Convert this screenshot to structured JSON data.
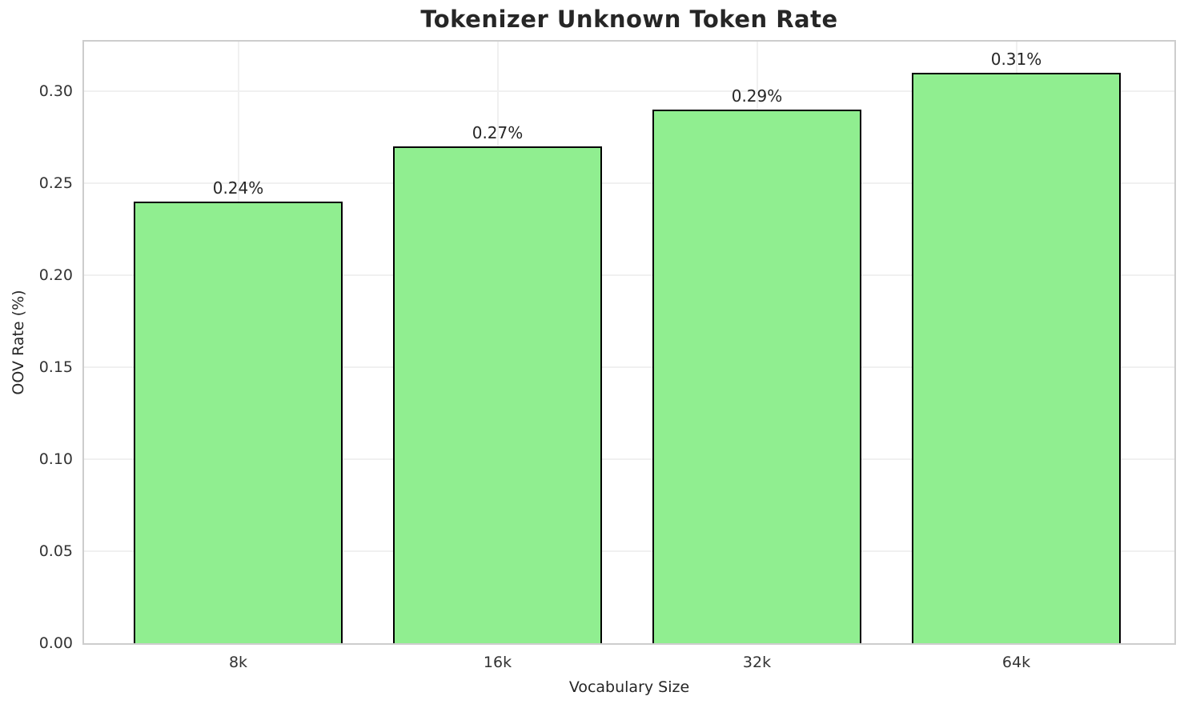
{
  "figure": {
    "background": "#ffffff"
  },
  "chart_data": {
    "type": "bar",
    "title": "Tokenizer Unknown Token Rate",
    "xlabel": "Vocabulary Size",
    "ylabel": "OOV Rate (%)",
    "categories": [
      "8k",
      "16k",
      "32k",
      "64k"
    ],
    "values": [
      0.24,
      0.27,
      0.29,
      0.31
    ],
    "bar_labels": [
      "0.24%",
      "0.27%",
      "0.29%",
      "0.31%"
    ],
    "yticks": [
      0.0,
      0.05,
      0.1,
      0.15,
      0.2,
      0.25,
      0.3
    ],
    "ytick_labels": [
      "0.00",
      "0.05",
      "0.10",
      "0.15",
      "0.20",
      "0.25",
      "0.30"
    ],
    "ylim": [
      0,
      0.327
    ],
    "grid": true,
    "legend": false,
    "colors": {
      "bar_fill": "#90EE90",
      "bar_edge": "#000000",
      "grid": "#f0f0f0",
      "spine": "#cdcdcd",
      "title_text": "#262626",
      "tick_text": "#333333"
    }
  }
}
